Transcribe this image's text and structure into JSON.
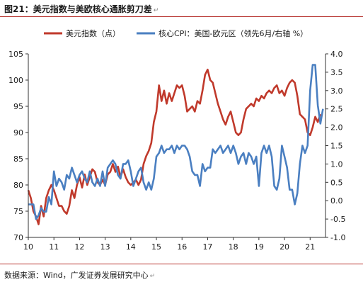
{
  "header": {
    "title": "图21：美元指数与美欧核心通胀剪刀差",
    "return_mark": "↵"
  },
  "footer": {
    "source": "数据来源：Wind，广发证券发展研究中心",
    "return_mark": "↵"
  },
  "chart_data": {
    "type": "line",
    "title": "图21：美元指数与美欧核心通胀剪刀差",
    "x_tick_labels": [
      "10",
      "11",
      "12",
      "13",
      "14",
      "15",
      "16",
      "17",
      "18",
      "19",
      "20",
      "21"
    ],
    "x_range": [
      2010.0,
      2021.6
    ],
    "y_left": {
      "range": [
        70,
        105
      ],
      "ticks": [
        "70",
        "75",
        "80",
        "85",
        "90",
        "95",
        "100",
        "105"
      ]
    },
    "y_right": {
      "range": [
        -1.0,
        4.0
      ],
      "ticks": [
        "-1.0",
        "-0.5",
        "0.0",
        "0.5",
        "1.0",
        "1.5",
        "2.0",
        "2.5",
        "3.0",
        "3.5",
        "4.0"
      ]
    },
    "legend_position": "top",
    "grid": false,
    "colors": {
      "dxy": "#c0392b",
      "spread": "#4a7fc1"
    },
    "series": [
      {
        "name": "美元指数（点）",
        "axis": "left",
        "x": [
          2010.0,
          2010.1,
          2010.2,
          2010.3,
          2010.4,
          2010.5,
          2010.6,
          2010.7,
          2010.8,
          2010.9,
          2011.0,
          2011.1,
          2011.2,
          2011.3,
          2011.4,
          2011.5,
          2011.6,
          2011.7,
          2011.8,
          2011.9,
          2012.0,
          2012.1,
          2012.2,
          2012.3,
          2012.4,
          2012.5,
          2012.6,
          2012.7,
          2012.8,
          2012.9,
          2013.0,
          2013.1,
          2013.2,
          2013.3,
          2013.4,
          2013.5,
          2013.6,
          2013.7,
          2013.8,
          2013.9,
          2014.0,
          2014.1,
          2014.2,
          2014.3,
          2014.4,
          2014.5,
          2014.6,
          2014.7,
          2014.8,
          2014.9,
          2015.0,
          2015.1,
          2015.2,
          2015.3,
          2015.4,
          2015.5,
          2015.6,
          2015.7,
          2015.8,
          2015.9,
          2016.0,
          2016.1,
          2016.2,
          2016.3,
          2016.4,
          2016.5,
          2016.6,
          2016.7,
          2016.8,
          2016.9,
          2017.0,
          2017.1,
          2017.2,
          2017.3,
          2017.4,
          2017.5,
          2017.6,
          2017.7,
          2017.8,
          2017.9,
          2018.0,
          2018.1,
          2018.2,
          2018.3,
          2018.4,
          2018.5,
          2018.6,
          2018.7,
          2018.8,
          2018.9,
          2019.0,
          2019.1,
          2019.2,
          2019.3,
          2019.4,
          2019.5,
          2019.6,
          2019.7,
          2019.8,
          2019.9,
          2020.0,
          2020.1,
          2020.2,
          2020.3,
          2020.4,
          2020.5,
          2020.6,
          2020.7,
          2020.8,
          2020.9,
          2021.0,
          2021.1,
          2021.2,
          2021.3,
          2021.4
        ],
        "values": [
          79,
          77.5,
          75,
          74,
          72.5,
          76,
          74,
          77.5,
          79,
          80,
          79,
          77.5,
          76,
          76,
          75,
          74.5,
          76,
          79,
          77.5,
          80,
          81.5,
          79.5,
          82,
          80,
          81.5,
          83,
          82.5,
          80.5,
          80,
          81,
          80,
          82,
          82.5,
          84,
          82.5,
          83.5,
          81.5,
          83,
          81.5,
          80.5,
          80,
          80.5,
          81,
          80,
          81,
          84,
          85.5,
          86.5,
          88,
          92,
          94,
          99,
          96,
          98,
          95.5,
          97.5,
          96,
          97.5,
          99,
          98.5,
          99,
          97,
          94,
          94.5,
          95,
          94,
          96,
          95.5,
          98,
          101,
          102,
          100,
          99.5,
          97.5,
          95.5,
          94,
          92.5,
          91.5,
          93,
          94,
          92,
          90,
          89.5,
          90,
          92.5,
          94.5,
          95,
          95.5,
          95,
          96.5,
          96,
          97,
          96.5,
          97.5,
          98,
          97.5,
          98.5,
          99,
          97.5,
          98,
          97,
          98.5,
          99.5,
          100,
          99.5,
          97,
          93.5,
          93,
          92.5,
          90,
          89.5,
          91,
          93,
          92,
          93.5
        ]
      },
      {
        "name": "核心CPI：美国-欧元区（领先6月/右轴 %）",
        "axis": "right",
        "x": [
          2010.0,
          2010.1,
          2010.2,
          2010.3,
          2010.4,
          2010.5,
          2010.6,
          2010.7,
          2010.8,
          2010.9,
          2011.0,
          2011.1,
          2011.2,
          2011.3,
          2011.4,
          2011.5,
          2011.6,
          2011.7,
          2011.8,
          2011.9,
          2012.0,
          2012.1,
          2012.2,
          2012.3,
          2012.4,
          2012.5,
          2012.6,
          2012.7,
          2012.8,
          2012.9,
          2013.0,
          2013.1,
          2013.2,
          2013.3,
          2013.4,
          2013.5,
          2013.6,
          2013.7,
          2013.8,
          2013.9,
          2014.0,
          2014.1,
          2014.2,
          2014.3,
          2014.4,
          2014.5,
          2014.6,
          2014.7,
          2014.8,
          2014.9,
          2015.0,
          2015.1,
          2015.2,
          2015.3,
          2015.4,
          2015.5,
          2015.6,
          2015.7,
          2015.8,
          2015.9,
          2016.0,
          2016.1,
          2016.2,
          2016.3,
          2016.4,
          2016.5,
          2016.6,
          2016.7,
          2016.8,
          2016.9,
          2017.0,
          2017.1,
          2017.2,
          2017.3,
          2017.4,
          2017.5,
          2017.6,
          2017.7,
          2017.8,
          2017.9,
          2018.0,
          2018.1,
          2018.2,
          2018.3,
          2018.4,
          2018.5,
          2018.6,
          2018.7,
          2018.8,
          2018.9,
          2019.0,
          2019.1,
          2019.2,
          2019.3,
          2019.4,
          2019.5,
          2019.6,
          2019.7,
          2019.8,
          2019.9,
          2020.0,
          2020.1,
          2020.2,
          2020.3,
          2020.4,
          2020.5,
          2020.6,
          2020.7,
          2020.8,
          2020.9,
          2021.0,
          2021.1,
          2021.2,
          2021.3,
          2021.4,
          2021.5
        ],
        "values": [
          -0.1,
          -0.1,
          -0.1,
          -0.5,
          -0.4,
          -0.2,
          -0.3,
          -0.3,
          0.1,
          -0.1,
          0.8,
          0.4,
          0.6,
          0.5,
          0.3,
          0.7,
          0.6,
          0.9,
          0.7,
          0.5,
          0.7,
          0.8,
          0.6,
          0.5,
          0.8,
          0.5,
          0.4,
          0.6,
          0.4,
          0.8,
          0.4,
          0.9,
          1.0,
          1.1,
          1.0,
          0.7,
          0.6,
          1.0,
          1.0,
          1.1,
          0.8,
          0.4,
          0.6,
          0.8,
          0.9,
          0.5,
          0.3,
          0.5,
          0.3,
          0.6,
          1.2,
          1.3,
          1.5,
          1.3,
          1.4,
          1.4,
          1.5,
          1.3,
          1.5,
          1.4,
          1.5,
          1.5,
          1.4,
          1.2,
          0.8,
          0.7,
          0.7,
          0.4,
          1.0,
          0.8,
          0.9,
          0.9,
          1.4,
          1.3,
          1.4,
          1.5,
          1.3,
          1.4,
          1.5,
          1.3,
          1.5,
          1.3,
          1.0,
          1.2,
          1.3,
          1.0,
          1.3,
          1.2,
          1.0,
          1.2,
          0.4,
          1.3,
          1.5,
          1.3,
          1.5,
          1.2,
          0.4,
          0.3,
          0.6,
          1.5,
          1.2,
          0.9,
          0.3,
          0.3,
          -0.1,
          0.2,
          1.0,
          1.5,
          1.3,
          1.5,
          3.0,
          3.7,
          3.7,
          2.6,
          2.1,
          2.5
        ]
      }
    ]
  }
}
